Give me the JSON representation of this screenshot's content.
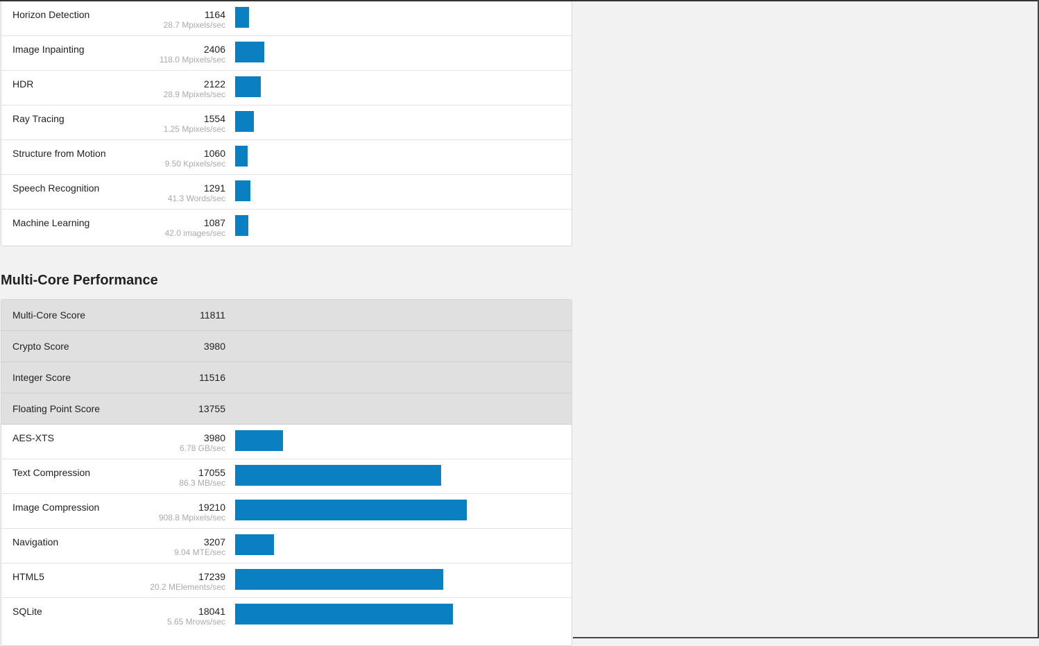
{
  "single_core_rows": [
    {
      "name": "Horizon Detection",
      "score": "1164",
      "rate": "28.7 Mpixels/sec",
      "bar_fraction": 0.0562
    },
    {
      "name": "Image Inpainting",
      "score": "2406",
      "rate": "118.0 Mpixels/sec",
      "bar_fraction": 0.1162
    },
    {
      "name": "HDR",
      "score": "2122",
      "rate": "28.9 Mpixels/sec",
      "bar_fraction": 0.1025
    },
    {
      "name": "Ray Tracing",
      "score": "1554",
      "rate": "1.25 Mpixels/sec",
      "bar_fraction": 0.075
    },
    {
      "name": "Structure from Motion",
      "score": "1060",
      "rate": "9.50 Kpixels/sec",
      "bar_fraction": 0.0512
    },
    {
      "name": "Speech Recognition",
      "score": "1291",
      "rate": "41.3 Words/sec",
      "bar_fraction": 0.0623
    },
    {
      "name": "Machine Learning",
      "score": "1087",
      "rate": "42.0 images/sec",
      "bar_fraction": 0.0525
    }
  ],
  "multi_core": {
    "title": "Multi-Core Performance",
    "scores": [
      {
        "name": "Multi-Core Score",
        "score": "11811"
      },
      {
        "name": "Crypto Score",
        "score": "3980"
      },
      {
        "name": "Integer Score",
        "score": "11516"
      },
      {
        "name": "Floating Point Score",
        "score": "13755"
      }
    ],
    "rows": [
      {
        "name": "AES-XTS",
        "score": "3980",
        "rate": "6.78 GB/sec",
        "bar_fraction": 0.1922
      },
      {
        "name": "Text Compression",
        "score": "17055",
        "rate": "86.3 MB/sec",
        "bar_fraction": 0.8237
      },
      {
        "name": "Image Compression",
        "score": "19210",
        "rate": "908.8 Mpixels/sec",
        "bar_fraction": 0.9278
      },
      {
        "name": "Navigation",
        "score": "3207",
        "rate": "9.04 MTE/sec",
        "bar_fraction": 0.1549
      },
      {
        "name": "HTML5",
        "score": "17239",
        "rate": "20.2 MElements/sec",
        "bar_fraction": 0.8326
      },
      {
        "name": "SQLite",
        "score": "18041",
        "rate": "5.65 Mrows/sec",
        "bar_fraction": 0.8713
      }
    ]
  },
  "colors": {
    "bar": "#0a7fc2",
    "score_row_bg": "#e0e0e0",
    "page_bg": "#f2f2f2"
  }
}
